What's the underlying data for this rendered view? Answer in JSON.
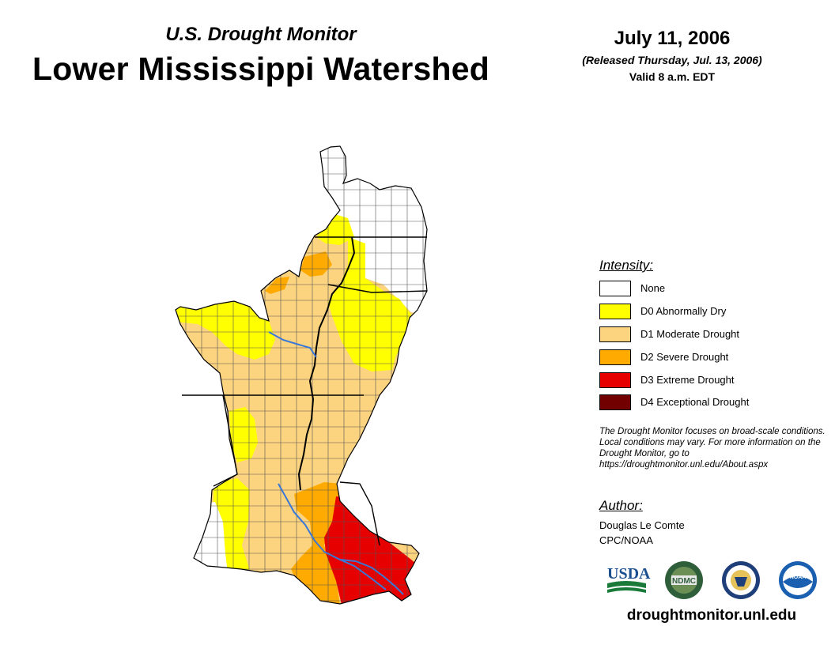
{
  "header": {
    "subtitle": "U.S. Drought Monitor",
    "title": "Lower Mississippi Watershed",
    "date": "July 11, 2006",
    "released": "(Released Thursday, Jul. 13, 2006)",
    "valid": "Valid 8 a.m. EDT"
  },
  "legend": {
    "title": "Intensity:",
    "items": [
      {
        "label": "None",
        "color": "#ffffff"
      },
      {
        "label": "D0 Abnormally Dry",
        "color": "#ffff00"
      },
      {
        "label": "D1 Moderate Drought",
        "color": "#fcd37f"
      },
      {
        "label": "D2 Severe Drought",
        "color": "#ffaa00"
      },
      {
        "label": "D3 Extreme Drought",
        "color": "#e60000"
      },
      {
        "label": "D4 Exceptional Drought",
        "color": "#730000"
      }
    ]
  },
  "disclaimer": "The Drought Monitor focuses on broad-scale conditions. Local conditions may vary. For more information on the Drought Monitor, go to https://droughtmonitor.unl.edu/About.aspx",
  "author": {
    "title": "Author:",
    "name": "Douglas Le Comte",
    "org": "CPC/NOAA"
  },
  "logos": {
    "usda": "USDA",
    "ndmc": "NDMC",
    "noaa": "NOAA"
  },
  "website": "droughtmonitor.unl.edu",
  "colors": {
    "river": "#3a78d8",
    "border": "#000000",
    "county": "#555555"
  }
}
